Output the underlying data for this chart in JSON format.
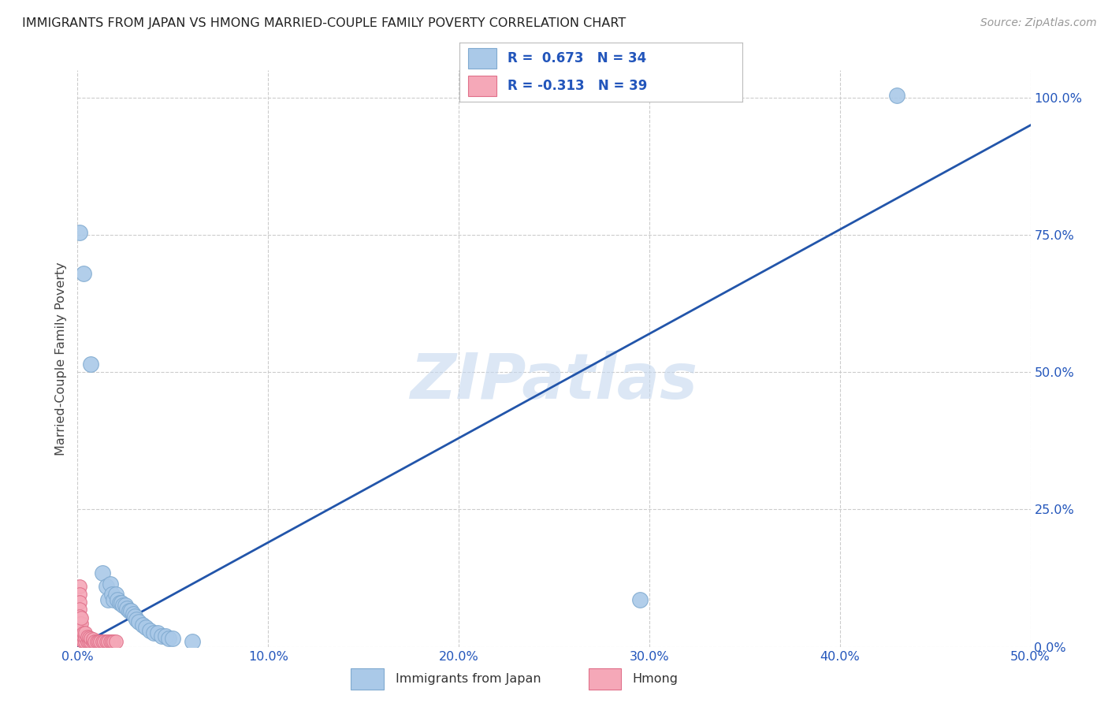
{
  "title": "IMMIGRANTS FROM JAPAN VS HMONG MARRIED-COUPLE FAMILY POVERTY CORRELATION CHART",
  "source": "Source: ZipAtlas.com",
  "watermark": "ZIPatlas",
  "legend_blue_label": "Immigrants from Japan",
  "legend_pink_label": "Hmong",
  "legend_blue_R": "R =  0.673",
  "legend_blue_N": "N = 34",
  "legend_pink_R": "R = -0.313",
  "legend_pink_N": "N = 39",
  "blue_color": "#aac9e8",
  "blue_line_color": "#2255aa",
  "pink_color": "#f5a8b8",
  "pink_edge_color": "#e0708a",
  "blue_edge_color": "#80aad0",
  "xlim": [
    0,
    0.5
  ],
  "ylim": [
    0,
    1.05
  ],
  "xticks": [
    0.0,
    0.1,
    0.2,
    0.3,
    0.4,
    0.5
  ],
  "yticks": [
    0.0,
    0.25,
    0.5,
    0.75,
    1.0
  ],
  "background_color": "#ffffff",
  "grid_color": "#cccccc",
  "trendline_x": [
    0.0,
    0.5
  ],
  "trendline_y": [
    0.0,
    0.95
  ],
  "scatter_blue": [
    [
      0.001,
      0.755
    ],
    [
      0.003,
      0.68
    ],
    [
      0.007,
      0.515
    ],
    [
      0.013,
      0.135
    ],
    [
      0.015,
      0.11
    ],
    [
      0.016,
      0.085
    ],
    [
      0.017,
      0.115
    ],
    [
      0.018,
      0.095
    ],
    [
      0.019,
      0.085
    ],
    [
      0.02,
      0.095
    ],
    [
      0.021,
      0.085
    ],
    [
      0.022,
      0.08
    ],
    [
      0.023,
      0.08
    ],
    [
      0.024,
      0.075
    ],
    [
      0.025,
      0.075
    ],
    [
      0.026,
      0.07
    ],
    [
      0.027,
      0.065
    ],
    [
      0.028,
      0.065
    ],
    [
      0.029,
      0.06
    ],
    [
      0.03,
      0.055
    ],
    [
      0.031,
      0.05
    ],
    [
      0.032,
      0.045
    ],
    [
      0.034,
      0.04
    ],
    [
      0.036,
      0.035
    ],
    [
      0.038,
      0.03
    ],
    [
      0.04,
      0.025
    ],
    [
      0.042,
      0.025
    ],
    [
      0.044,
      0.02
    ],
    [
      0.046,
      0.02
    ],
    [
      0.048,
      0.015
    ],
    [
      0.05,
      0.015
    ],
    [
      0.06,
      0.01
    ],
    [
      0.295,
      0.085
    ],
    [
      0.43,
      1.005
    ]
  ],
  "scatter_pink": [
    [
      0.001,
      0.11
    ],
    [
      0.001,
      0.095
    ],
    [
      0.001,
      0.082
    ],
    [
      0.001,
      0.068
    ],
    [
      0.001,
      0.055
    ],
    [
      0.001,
      0.042
    ],
    [
      0.001,
      0.028
    ],
    [
      0.001,
      0.015
    ],
    [
      0.002,
      0.012
    ],
    [
      0.002,
      0.022
    ],
    [
      0.002,
      0.032
    ],
    [
      0.002,
      0.042
    ],
    [
      0.002,
      0.052
    ],
    [
      0.003,
      0.01
    ],
    [
      0.003,
      0.018
    ],
    [
      0.003,
      0.026
    ],
    [
      0.004,
      0.01
    ],
    [
      0.004,
      0.018
    ],
    [
      0.004,
      0.026
    ],
    [
      0.005,
      0.01
    ],
    [
      0.005,
      0.018
    ],
    [
      0.006,
      0.01
    ],
    [
      0.006,
      0.016
    ],
    [
      0.007,
      0.01
    ],
    [
      0.007,
      0.015
    ],
    [
      0.008,
      0.01
    ],
    [
      0.008,
      0.014
    ],
    [
      0.009,
      0.01
    ],
    [
      0.01,
      0.01
    ],
    [
      0.011,
      0.01
    ],
    [
      0.012,
      0.01
    ],
    [
      0.013,
      0.01
    ],
    [
      0.014,
      0.01
    ],
    [
      0.015,
      0.01
    ],
    [
      0.016,
      0.01
    ],
    [
      0.017,
      0.01
    ],
    [
      0.018,
      0.01
    ],
    [
      0.019,
      0.01
    ],
    [
      0.02,
      0.01
    ]
  ]
}
